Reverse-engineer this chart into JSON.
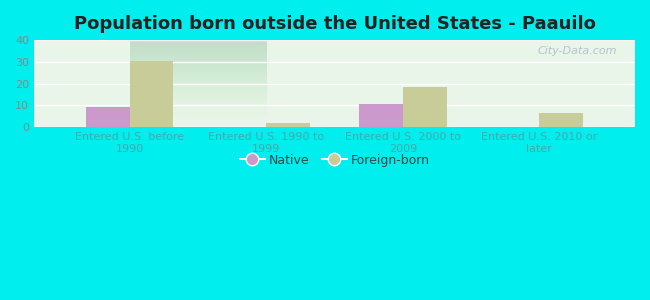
{
  "title": "Population born outside the United States - Paauilo",
  "categories": [
    "Entered U.S. before\n1990",
    "Entered U.S. 1990 to\n1999",
    "Entered U.S. 2000 to\n2009",
    "Entered U.S. 2010 or\nlater"
  ],
  "native_values": [
    9.5,
    0,
    10.5,
    0
  ],
  "foreign_values": [
    30.5,
    2,
    18.5,
    6.5
  ],
  "native_color": "#cc99cc",
  "foreign_color": "#c8cc99",
  "background_color": "#00eeee",
  "plot_bg_top": "#f8fef8",
  "plot_bg_bottom": "#e8f5e8",
  "ylim": [
    0,
    40
  ],
  "yticks": [
    0,
    10,
    20,
    30,
    40
  ],
  "bar_width": 0.32,
  "legend_labels": [
    "Native",
    "Foreign-born"
  ],
  "watermark": "City-Data.com",
  "title_fontsize": 13,
  "tick_fontsize": 8,
  "xtick_color": "#44aaaa",
  "ytick_color": "#888888",
  "legend_fontsize": 9,
  "grid_color": "#ddeecc",
  "watermark_color": "#aabbcc"
}
